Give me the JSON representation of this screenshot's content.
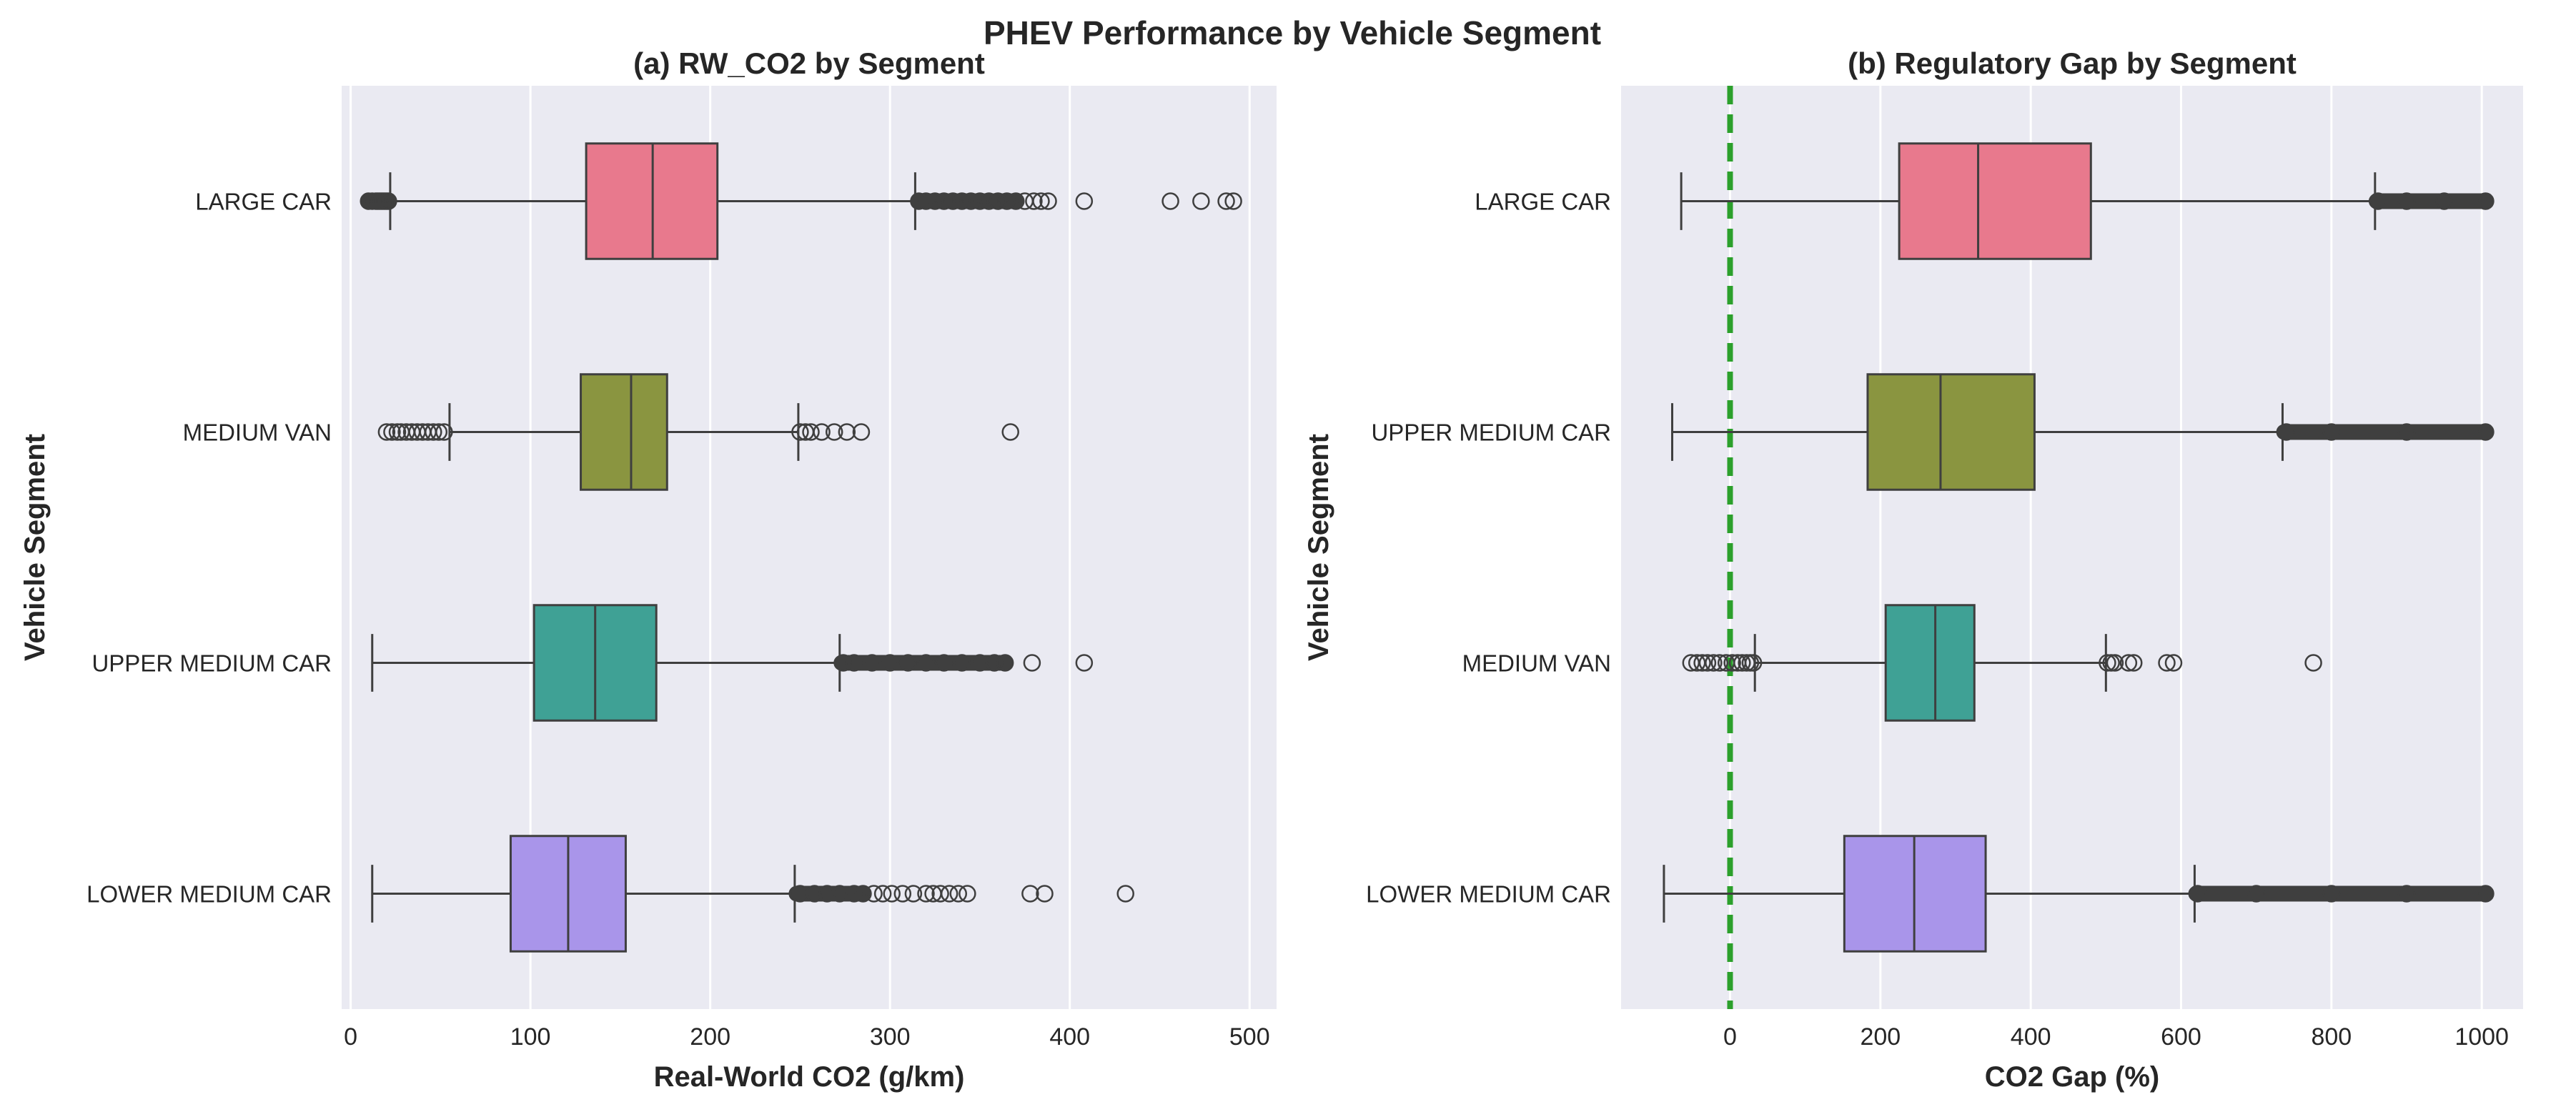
{
  "figure_title": "PHEV Performance by Vehicle Segment",
  "colors": {
    "plot_bg": "#EAEAF2",
    "grid": "#FFFFFF",
    "whisker": "#3F3F3F",
    "reference_line": "#2CA02C",
    "boxes": [
      "#E8798D",
      "#8A9540",
      "#3FA195",
      "#A995EA"
    ]
  },
  "chart_data": [
    {
      "type": "boxplot",
      "orientation": "horizontal",
      "title": "(a) RW_CO2 by Segment",
      "xlabel": "Real-World CO2 (g/km)",
      "ylabel": "Vehicle Segment",
      "xlim": [
        -5,
        515
      ],
      "xticks": [
        0,
        100,
        200,
        300,
        400,
        500
      ],
      "grid": true,
      "reference_line": null,
      "categories": [
        "LARGE CAR",
        "MEDIUM VAN",
        "UPPER MEDIUM CAR",
        "LOWER MEDIUM CAR"
      ],
      "boxes": [
        {
          "label": "LARGE CAR",
          "whisker_low": 22,
          "q1": 131,
          "median": 168,
          "q3": 204,
          "whisker_high": 314,
          "outlier_bands": [
            [
              10,
              21
            ],
            [
              316,
              370
            ]
          ],
          "outliers": [
            10,
            12,
            14,
            15,
            16,
            17,
            18,
            19,
            20,
            21,
            316,
            320,
            325,
            330,
            335,
            340,
            345,
            350,
            355,
            360,
            365,
            370,
            375,
            380,
            384,
            388,
            408,
            456,
            473,
            487,
            491
          ]
        },
        {
          "label": "MEDIUM VAN",
          "whisker_low": 55,
          "q1": 128,
          "median": 156,
          "q3": 176,
          "whisker_high": 249,
          "outlier_bands": [],
          "outliers": [
            20,
            23,
            26,
            28,
            31,
            34,
            37,
            40,
            43,
            46,
            49,
            52,
            250,
            253,
            256,
            262,
            269,
            276,
            284,
            367
          ]
        },
        {
          "label": "UPPER MEDIUM CAR",
          "whisker_low": 12,
          "q1": 102,
          "median": 136,
          "q3": 170,
          "whisker_high": 272,
          "outlier_bands": [
            [
              273,
              364
            ]
          ],
          "outliers": [
            274,
            280,
            290,
            300,
            310,
            320,
            330,
            340,
            350,
            358,
            364,
            379,
            408
          ]
        },
        {
          "label": "LOWER MEDIUM CAR",
          "whisker_low": 12,
          "q1": 89,
          "median": 121,
          "q3": 153,
          "whisker_high": 247,
          "outlier_bands": [
            [
              248,
              285
            ]
          ],
          "outliers": [
            250,
            258,
            265,
            272,
            280,
            285,
            291,
            296,
            301,
            307,
            313,
            320,
            324,
            328,
            333,
            338,
            343,
            378,
            386,
            431
          ]
        }
      ]
    },
    {
      "type": "boxplot",
      "orientation": "horizontal",
      "title": "(b) Regulatory Gap by Segment",
      "xlabel": "CO2 Gap (%)",
      "ylabel": "Vehicle Segment",
      "xlim": [
        -145,
        1055
      ],
      "xticks": [
        0,
        200,
        400,
        600,
        800,
        1000
      ],
      "grid": true,
      "reference_line": {
        "x": 0,
        "style": "dashed"
      },
      "categories": [
        "LARGE CAR",
        "UPPER MEDIUM CAR",
        "MEDIUM VAN",
        "LOWER MEDIUM CAR"
      ],
      "boxes": [
        {
          "label": "LARGE CAR",
          "whisker_low": -65,
          "q1": 225,
          "median": 330,
          "q3": 480,
          "whisker_high": 858,
          "outlier_bands": [
            [
              860,
              1005
            ]
          ],
          "outliers": [
            862,
            900,
            950,
            1005
          ]
        },
        {
          "label": "UPPER MEDIUM CAR",
          "whisker_low": -77,
          "q1": 183,
          "median": 280,
          "q3": 405,
          "whisker_high": 735,
          "outlier_bands": [
            [
              737,
              1005
            ]
          ],
          "outliers": [
            740,
            800,
            900,
            1005
          ]
        },
        {
          "label": "MEDIUM VAN",
          "whisker_low": 33,
          "q1": 207,
          "median": 273,
          "q3": 325,
          "whisker_high": 500,
          "outlier_bands": [],
          "outliers": [
            -52,
            -44,
            -37,
            -30,
            -22,
            -14,
            -5,
            3,
            10,
            16,
            22,
            27,
            31,
            502,
            507,
            512,
            530,
            537,
            581,
            590,
            776
          ]
        },
        {
          "label": "LOWER MEDIUM CAR",
          "whisker_low": -88,
          "q1": 152,
          "median": 245,
          "q3": 340,
          "whisker_high": 618,
          "outlier_bands": [
            [
              620,
              1005
            ]
          ],
          "outliers": [
            622,
            700,
            800,
            900,
            1005
          ]
        }
      ]
    }
  ]
}
